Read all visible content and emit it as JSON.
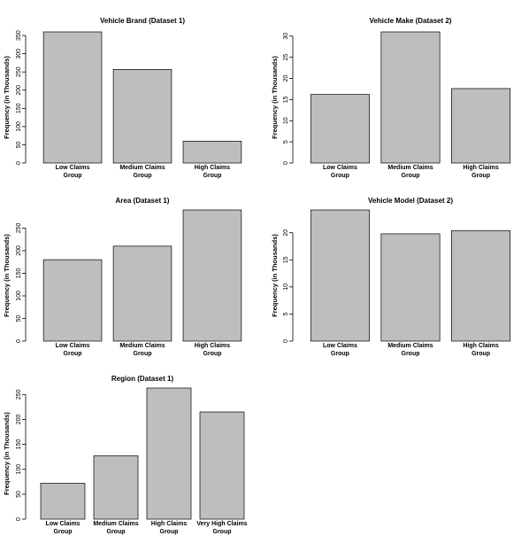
{
  "chart_data": [
    {
      "type": "bar",
      "title": "Vehicle Brand (Dataset 1)",
      "ylabel": "Frequency (in Thousands)",
      "categories": [
        [
          "Low Claims",
          "Group"
        ],
        [
          "Medium Claims",
          "Group"
        ],
        [
          "High Claims",
          "Group"
        ]
      ],
      "values": [
        360,
        257,
        60
      ],
      "yticks": [
        0,
        50,
        100,
        150,
        200,
        250,
        300,
        350
      ],
      "ylim": [
        0,
        360
      ]
    },
    {
      "type": "bar",
      "title": "Vehicle Make (Dataset 2)",
      "ylabel": "Frequency (in Thousands)",
      "categories": [
        [
          "Low Claims",
          "Group"
        ],
        [
          "Medium Claims",
          "Group"
        ],
        [
          "High Claims",
          "Group"
        ]
      ],
      "values": [
        16.2,
        31,
        17.6
      ],
      "yticks": [
        0,
        5,
        10,
        15,
        20,
        25,
        30
      ],
      "ylim": [
        0,
        31
      ]
    },
    {
      "type": "bar",
      "title": "Area (Dataset 1)",
      "ylabel": "Frequency (in Thousands)",
      "categories": [
        [
          "Low Claims",
          "Group"
        ],
        [
          "Medium Claims",
          "Group"
        ],
        [
          "High Claims",
          "Group"
        ]
      ],
      "values": [
        180,
        210,
        290
      ],
      "yticks": [
        0,
        50,
        100,
        150,
        200,
        250
      ],
      "ylim": [
        0,
        290
      ]
    },
    {
      "type": "bar",
      "title": "Vehicle Model (Dataset 2)",
      "ylabel": "Frequency (in Thousands)",
      "categories": [
        [
          "Low Claims",
          "Group"
        ],
        [
          "Medium Claims",
          "Group"
        ],
        [
          "High Claims",
          "Group"
        ]
      ],
      "values": [
        24.2,
        19.8,
        20.4
      ],
      "yticks": [
        0,
        5,
        10,
        15,
        20
      ],
      "ylim": [
        0,
        24.2
      ]
    },
    {
      "type": "bar",
      "title": "Region (Dataset 1)",
      "ylabel": "Frequency (in Thousands)",
      "categories": [
        [
          "Low Claims",
          "Group"
        ],
        [
          "Medium Claims",
          "Group"
        ],
        [
          "High Claims",
          "Group"
        ],
        [
          "Very High Claims",
          "Group"
        ]
      ],
      "values": [
        72,
        127,
        263,
        215
      ],
      "yticks": [
        0,
        50,
        100,
        150,
        200,
        250
      ],
      "ylim": [
        0,
        263
      ]
    }
  ]
}
